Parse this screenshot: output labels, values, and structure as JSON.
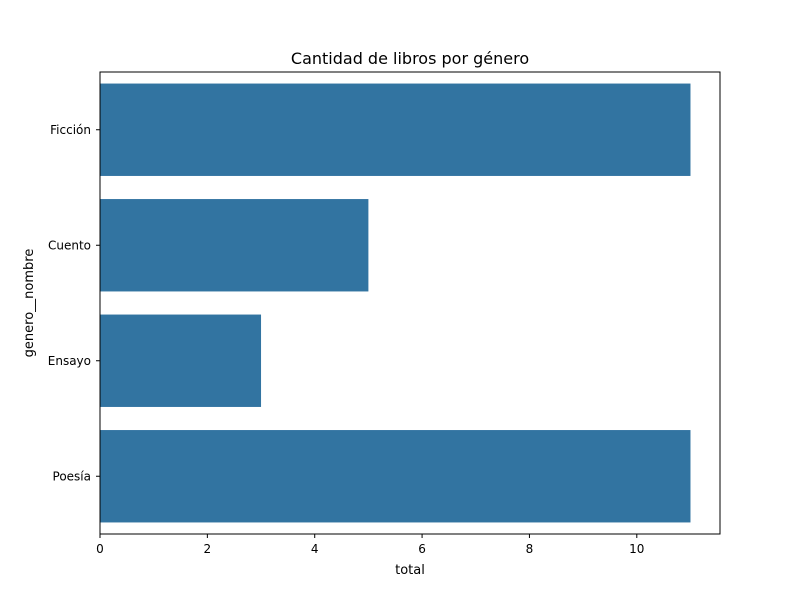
{
  "chart_data": {
    "type": "bar",
    "orientation": "horizontal",
    "title": "Cantidad de libros por género",
    "xlabel": "total",
    "ylabel": "genero__nombre",
    "categories": [
      "Ficción",
      "Cuento",
      "Ensayo",
      "Poesía"
    ],
    "values": [
      11,
      5,
      3,
      11
    ],
    "xlim": [
      0,
      11.55
    ],
    "xticks": [
      0,
      2,
      4,
      6,
      8,
      10
    ],
    "grid": false,
    "bar_color": "#3274a1"
  }
}
